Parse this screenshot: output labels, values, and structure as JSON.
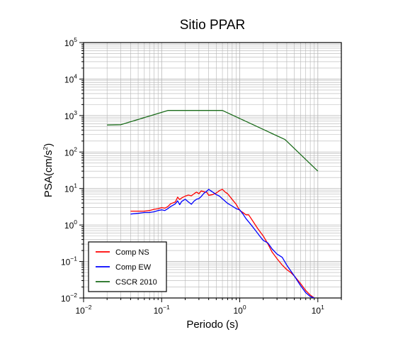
{
  "chart_data": {
    "type": "line",
    "title": "Sitio PPAR",
    "xlabel": "Periodo (s)",
    "ylabel": {
      "base": "PSA(cm/s",
      "exp": "2",
      "close": ")"
    },
    "xscale": "log",
    "yscale": "log",
    "xlim": [
      0.01,
      20
    ],
    "ylim": [
      0.01,
      100000
    ],
    "grid": true,
    "legend_position": "bottom-left",
    "x_ticks": [
      {
        "base": "10",
        "exp": "−2",
        "value": 0.01
      },
      {
        "base": "10",
        "exp": "−1",
        "value": 0.1
      },
      {
        "base": "10",
        "exp": "0",
        "value": 1
      },
      {
        "base": "10",
        "exp": "1",
        "value": 10
      }
    ],
    "y_ticks": [
      {
        "base": "10",
        "exp": "−2",
        "value": 0.01
      },
      {
        "base": "10",
        "exp": "−1",
        "value": 0.1
      },
      {
        "base": "10",
        "exp": "0",
        "value": 1
      },
      {
        "base": "10",
        "exp": "1",
        "value": 10
      },
      {
        "base": "10",
        "exp": "2",
        "value": 100
      },
      {
        "base": "10",
        "exp": "3",
        "value": 1000
      },
      {
        "base": "10",
        "exp": "4",
        "value": 10000
      },
      {
        "base": "10",
        "exp": "5",
        "value": 100000
      }
    ],
    "series": [
      {
        "name": "Comp NS",
        "color": "#ff0000",
        "points": [
          [
            0.04,
            2.4
          ],
          [
            0.05,
            2.4
          ],
          [
            0.06,
            2.4
          ],
          [
            0.07,
            2.5
          ],
          [
            0.08,
            2.7
          ],
          [
            0.09,
            2.8
          ],
          [
            0.1,
            3.0
          ],
          [
            0.11,
            2.9
          ],
          [
            0.12,
            3.2
          ],
          [
            0.13,
            3.8
          ],
          [
            0.15,
            4.3
          ],
          [
            0.16,
            5.8
          ],
          [
            0.17,
            5.0
          ],
          [
            0.18,
            5.5
          ],
          [
            0.2,
            6.2
          ],
          [
            0.22,
            6.6
          ],
          [
            0.24,
            6.3
          ],
          [
            0.26,
            7.2
          ],
          [
            0.28,
            8.0
          ],
          [
            0.3,
            7.2
          ],
          [
            0.32,
            8.6
          ],
          [
            0.35,
            8.2
          ],
          [
            0.38,
            7.8
          ],
          [
            0.4,
            6.5
          ],
          [
            0.45,
            6.8
          ],
          [
            0.5,
            7.5
          ],
          [
            0.55,
            8.8
          ],
          [
            0.6,
            9.5
          ],
          [
            0.65,
            8.0
          ],
          [
            0.7,
            7.2
          ],
          [
            0.8,
            5.0
          ],
          [
            0.9,
            3.7
          ],
          [
            1.0,
            2.5
          ],
          [
            1.1,
            2.2
          ],
          [
            1.2,
            1.9
          ],
          [
            1.3,
            1.9
          ],
          [
            1.5,
            1.2
          ],
          [
            1.7,
            0.8
          ],
          [
            2.0,
            0.5
          ],
          [
            2.3,
            0.3
          ],
          [
            2.6,
            0.18
          ],
          [
            3.0,
            0.12
          ],
          [
            3.5,
            0.08
          ],
          [
            4.0,
            0.06
          ],
          [
            4.5,
            0.05
          ],
          [
            5.0,
            0.04
          ],
          [
            6.0,
            0.025
          ],
          [
            7.0,
            0.016
          ],
          [
            8.0,
            0.012
          ],
          [
            9.0,
            0.01
          ]
        ]
      },
      {
        "name": "Comp EW",
        "color": "#0000ff",
        "points": [
          [
            0.04,
            2.0
          ],
          [
            0.05,
            2.1
          ],
          [
            0.06,
            2.2
          ],
          [
            0.07,
            2.2
          ],
          [
            0.08,
            2.3
          ],
          [
            0.09,
            2.5
          ],
          [
            0.1,
            2.6
          ],
          [
            0.11,
            2.5
          ],
          [
            0.12,
            2.8
          ],
          [
            0.13,
            3.2
          ],
          [
            0.15,
            3.8
          ],
          [
            0.16,
            4.6
          ],
          [
            0.17,
            3.6
          ],
          [
            0.18,
            4.4
          ],
          [
            0.2,
            5.1
          ],
          [
            0.22,
            4.3
          ],
          [
            0.24,
            3.7
          ],
          [
            0.26,
            4.5
          ],
          [
            0.28,
            5.1
          ],
          [
            0.3,
            5.3
          ],
          [
            0.32,
            6.0
          ],
          [
            0.35,
            7.5
          ],
          [
            0.38,
            8.5
          ],
          [
            0.4,
            9.5
          ],
          [
            0.45,
            8.0
          ],
          [
            0.5,
            6.8
          ],
          [
            0.55,
            6.2
          ],
          [
            0.6,
            5.2
          ],
          [
            0.7,
            3.9
          ],
          [
            0.8,
            3.3
          ],
          [
            0.9,
            2.8
          ],
          [
            1.0,
            2.6
          ],
          [
            1.1,
            2.0
          ],
          [
            1.2,
            1.5
          ],
          [
            1.4,
            1.0
          ],
          [
            1.6,
            0.7
          ],
          [
            1.8,
            0.5
          ],
          [
            2.0,
            0.38
          ],
          [
            2.3,
            0.32
          ],
          [
            2.6,
            0.22
          ],
          [
            3.0,
            0.16
          ],
          [
            3.5,
            0.13
          ],
          [
            4.0,
            0.08
          ],
          [
            4.5,
            0.055
          ],
          [
            5.0,
            0.04
          ],
          [
            6.0,
            0.022
          ],
          [
            7.0,
            0.014
          ],
          [
            8.0,
            0.011
          ],
          [
            9.0,
            0.01
          ]
        ]
      },
      {
        "name": "CSCR 2010",
        "color": "#1a6b1a",
        "points": [
          [
            0.02,
            550
          ],
          [
            0.03,
            560
          ],
          [
            0.12,
            1380
          ],
          [
            0.6,
            1380
          ],
          [
            3.8,
            220
          ],
          [
            10.0,
            30
          ]
        ]
      }
    ]
  }
}
